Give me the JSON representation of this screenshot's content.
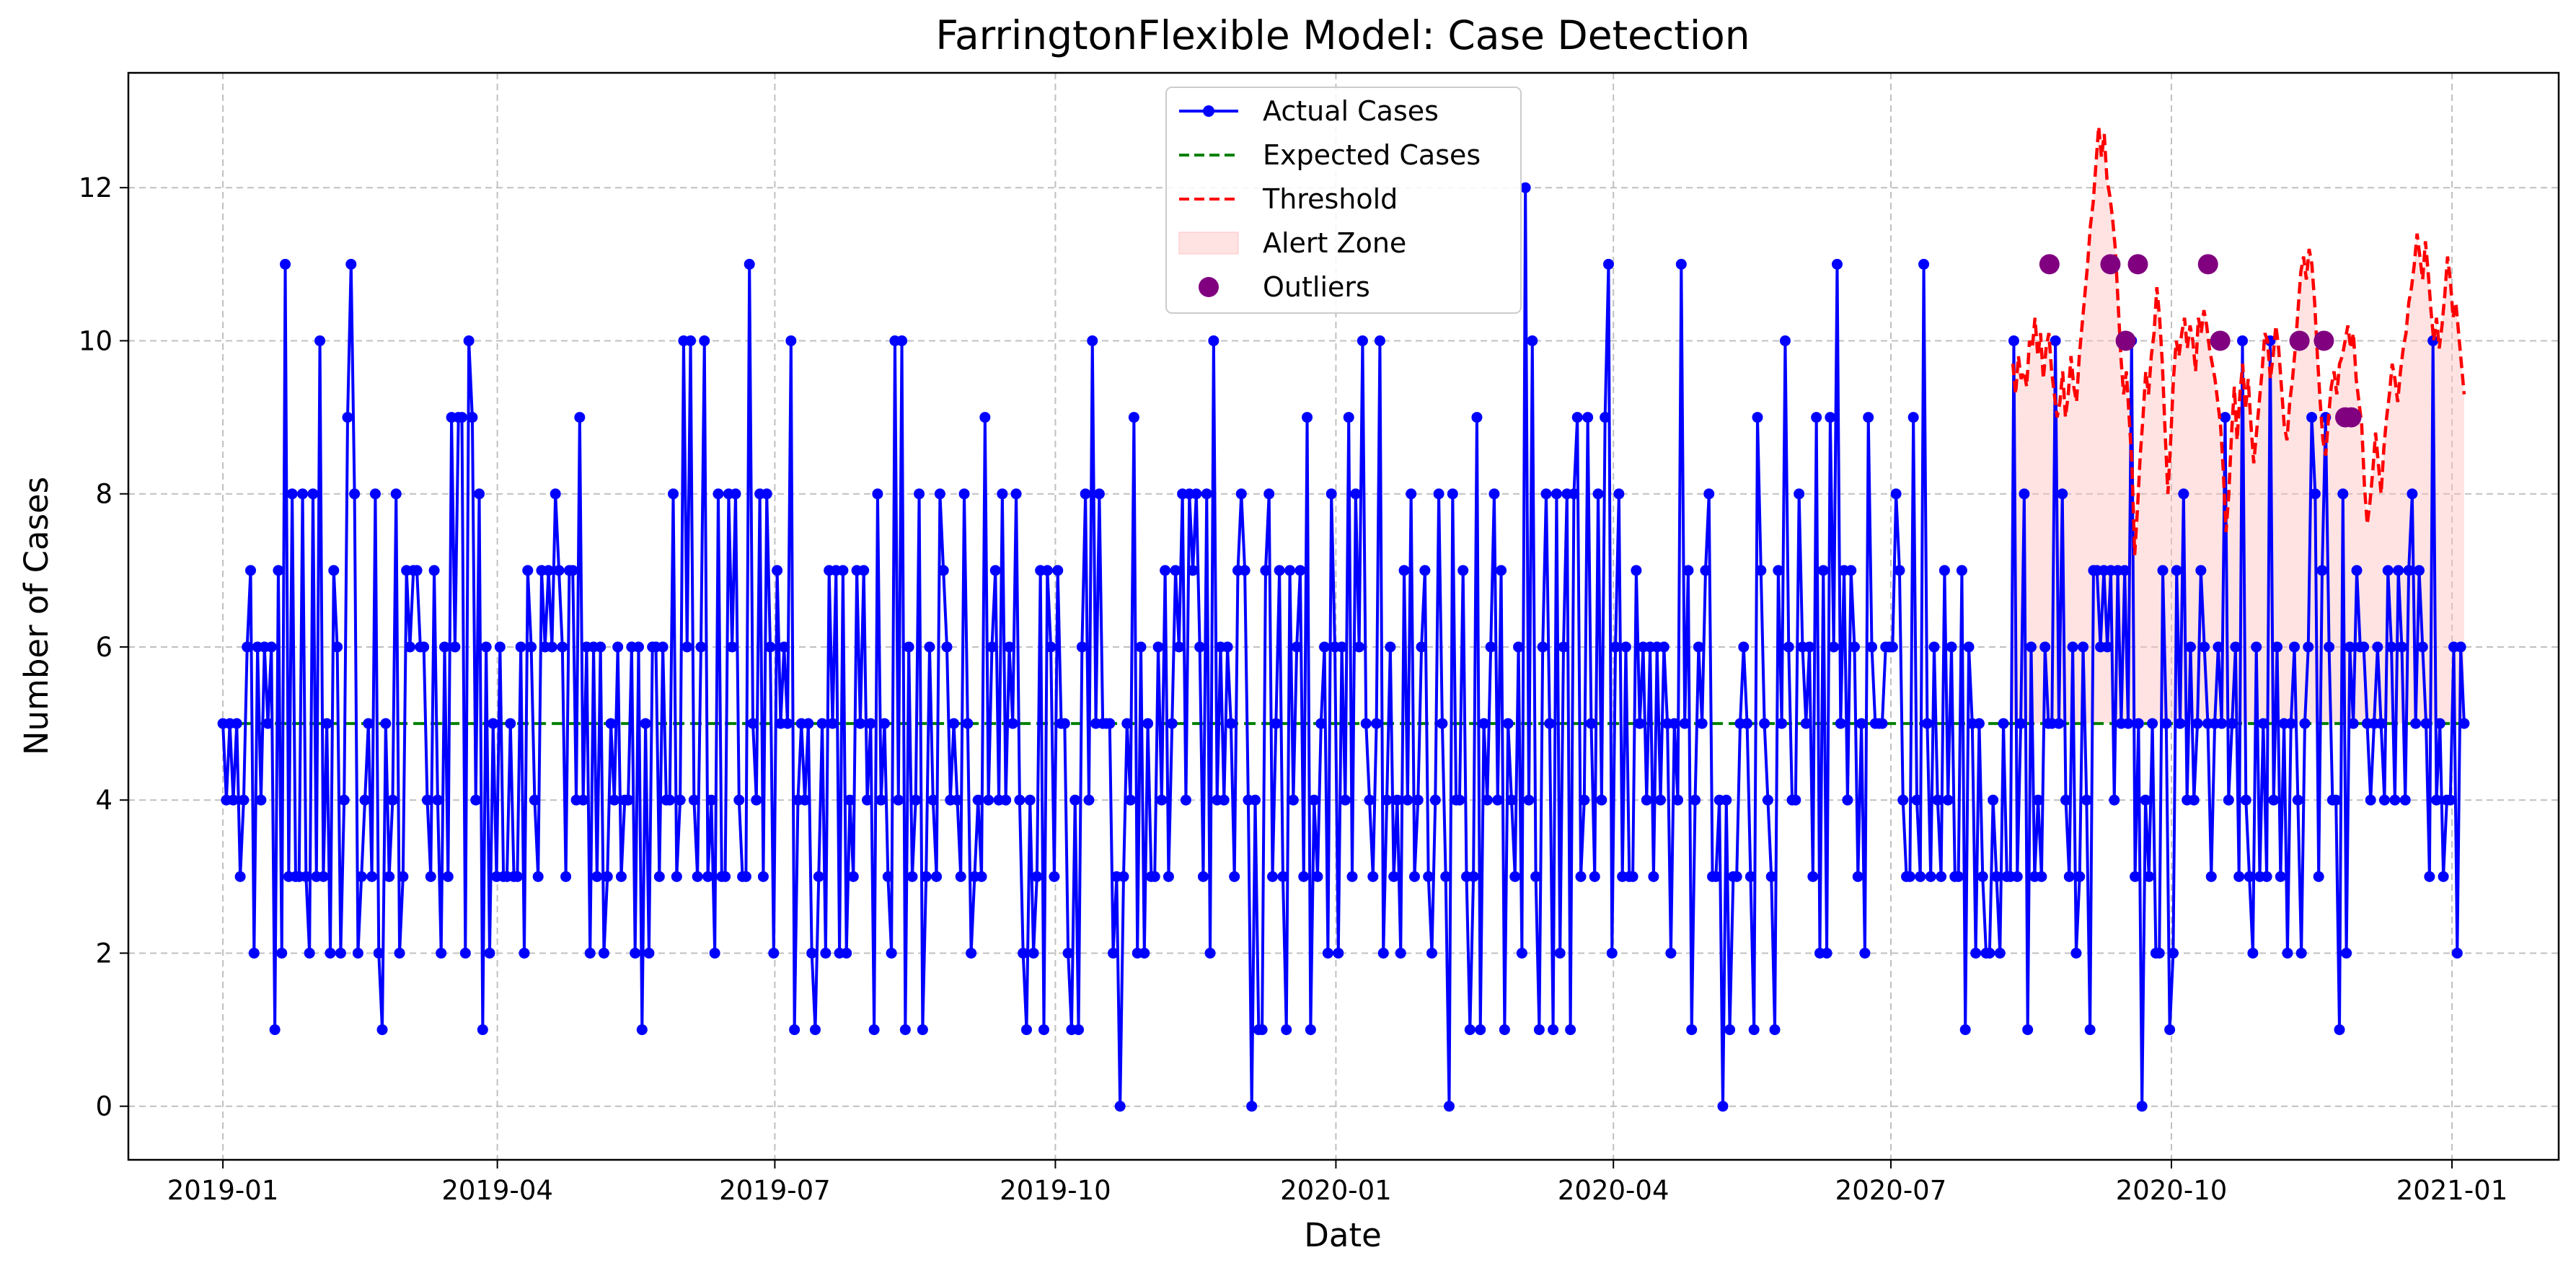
{
  "chart_data": {
    "type": "line",
    "title": "FarringtonFlexible Model: Case Detection",
    "xlabel": "Date",
    "ylabel": "Number of Cases",
    "x_start": "2019-01-01",
    "x_end": "2021-01-05",
    "xlim": [
      "2018-12-01",
      "2021-02-05"
    ],
    "ylim": [
      -0.7,
      13.5
    ],
    "x_ticks": [
      "2019-01",
      "2019-04",
      "2019-07",
      "2019-10",
      "2020-01",
      "2020-04",
      "2020-07",
      "2020-10",
      "2021-01"
    ],
    "y_ticks": [
      0,
      2,
      4,
      6,
      8,
      10,
      12
    ],
    "grid": true,
    "legend": {
      "position": "top-center",
      "entries": [
        "Actual Cases",
        "Expected Cases",
        "Threshold",
        "Alert Zone",
        "Outliers"
      ]
    },
    "series": [
      {
        "name": "Actual Cases",
        "style": "line-marker",
        "color": "#0000ff",
        "values": [
          5,
          4,
          5,
          4,
          5,
          3,
          4,
          6,
          7,
          2,
          6,
          4,
          6,
          5,
          6,
          1,
          7,
          2,
          11,
          3,
          8,
          3,
          3,
          8,
          3,
          2,
          8,
          3,
          10,
          3,
          5,
          2,
          7,
          6,
          2,
          4,
          9,
          11,
          8,
          2,
          3,
          4,
          5,
          3,
          8,
          2,
          1,
          5,
          3,
          4,
          8,
          2,
          3,
          7,
          6,
          7,
          7,
          6,
          6,
          4,
          3,
          7,
          4,
          2,
          6,
          3,
          9,
          6,
          9,
          9,
          2,
          10,
          9,
          4,
          8,
          1,
          6,
          2,
          5,
          3,
          6,
          3,
          3,
          5,
          3,
          3,
          6,
          2,
          7,
          6,
          4,
          3,
          7,
          6,
          7,
          6,
          8,
          7,
          6,
          3,
          7,
          7,
          4,
          9,
          4,
          6,
          2,
          6,
          3,
          6,
          2,
          3,
          5,
          4,
          6,
          3,
          4,
          4,
          6,
          2,
          6,
          1,
          5,
          2,
          6,
          6,
          3,
          6,
          4,
          4,
          8,
          3,
          4,
          10,
          6,
          10,
          4,
          3,
          6,
          10,
          3,
          4,
          2,
          8,
          3,
          3,
          8,
          6,
          8,
          4,
          3,
          3,
          11,
          5,
          4,
          8,
          3,
          8,
          6,
          2,
          7,
          5,
          6,
          5,
          10,
          1,
          4,
          5,
          4,
          5,
          2,
          1,
          3,
          5,
          2,
          7,
          5,
          7,
          2,
          7,
          2,
          4,
          3,
          7,
          5,
          7,
          4,
          5,
          1,
          8,
          4,
          5,
          3,
          2,
          10,
          4,
          10,
          1,
          6,
          3,
          4,
          8,
          1,
          3,
          6,
          4,
          3,
          8,
          7,
          6,
          4,
          5,
          4,
          3,
          8,
          5,
          2,
          3,
          4,
          3,
          9,
          4,
          6,
          7,
          4,
          8,
          4,
          6,
          5,
          8,
          4,
          2,
          1,
          4,
          2,
          3,
          7,
          1,
          7,
          6,
          3,
          7,
          5,
          5,
          2,
          1,
          4,
          1,
          6,
          8,
          4,
          10,
          5,
          8,
          5,
          5,
          5,
          2,
          3,
          0,
          3,
          5,
          4,
          9,
          2,
          6,
          2,
          5,
          3,
          3,
          6,
          4,
          7,
          3,
          5,
          7,
          6,
          8,
          4,
          8,
          7,
          8,
          6,
          3,
          8,
          2,
          10,
          4,
          6,
          4,
          6,
          5,
          3,
          7,
          8,
          7,
          4,
          0,
          4,
          1,
          1,
          7,
          8,
          3,
          5,
          7,
          3,
          1,
          7,
          4,
          6,
          7,
          3,
          9,
          1,
          4,
          3,
          5,
          6,
          2,
          8,
          6,
          2,
          6,
          4,
          9,
          3,
          8,
          6,
          10,
          5,
          4,
          3,
          5,
          10,
          2,
          4,
          6,
          3,
          4,
          2,
          7,
          4,
          8,
          3,
          4,
          6,
          7,
          3,
          2,
          4,
          8,
          5,
          3,
          0,
          8,
          4,
          4,
          7,
          3,
          1,
          3,
          9,
          1,
          5,
          4,
          6,
          8,
          4,
          7,
          1,
          5,
          4,
          3,
          6,
          2,
          12,
          4,
          10,
          3,
          1,
          6,
          8,
          5,
          1,
          8,
          2,
          6,
          8,
          1,
          8,
          9,
          3,
          4,
          9,
          5,
          3,
          8,
          4,
          9,
          11,
          2,
          6,
          8,
          3,
          6,
          3,
          3,
          7,
          5,
          6,
          4,
          6,
          3,
          6,
          4,
          6,
          5,
          2,
          5,
          4,
          11,
          5,
          7,
          1,
          4,
          6,
          5,
          7,
          8,
          3,
          3,
          4,
          0,
          4,
          1,
          3,
          3,
          5,
          6,
          5,
          3,
          1,
          9,
          7,
          5,
          4,
          3,
          1,
          7,
          5,
          10,
          6,
          4,
          4,
          8,
          6,
          5,
          6,
          3,
          9,
          2,
          7,
          2,
          9,
          6,
          11,
          5,
          7,
          4,
          7,
          6,
          3,
          5,
          2,
          9,
          6,
          5,
          5,
          5,
          6,
          6,
          6,
          8,
          7,
          4,
          3,
          3,
          9,
          4,
          3,
          11,
          5,
          3,
          6,
          4,
          3,
          7,
          4,
          6,
          3,
          3,
          7,
          1,
          6,
          5,
          2,
          5,
          3,
          2,
          2,
          4,
          3,
          2,
          5,
          3,
          3,
          10,
          3,
          5,
          8,
          1,
          6,
          3,
          4,
          3,
          6,
          5,
          5,
          10,
          5,
          8,
          4,
          3,
          6,
          2,
          3,
          6,
          4,
          1,
          7,
          7,
          6,
          7,
          6,
          7,
          4,
          7,
          5,
          7,
          5,
          10,
          3,
          5,
          0,
          4,
          3,
          5,
          2,
          2,
          7,
          5,
          1,
          2,
          7,
          5,
          8,
          4,
          6,
          4,
          5,
          7,
          6,
          5,
          3,
          5,
          6,
          5,
          9,
          4,
          5,
          6,
          3,
          10,
          4,
          3,
          2,
          6,
          3,
          5,
          3,
          10,
          4,
          6,
          3,
          5,
          2,
          5,
          6,
          4,
          2,
          5,
          6,
          9,
          8,
          3,
          7,
          9,
          6,
          4,
          4,
          1,
          8,
          2,
          6,
          5,
          7,
          6,
          6,
          5,
          4,
          5,
          6,
          5,
          4,
          7,
          6,
          4,
          7,
          6,
          4,
          7,
          8,
          5,
          7,
          6,
          5,
          3,
          10,
          4,
          5,
          3,
          4,
          4,
          6,
          2,
          6,
          5
        ]
      },
      {
        "name": "Expected Cases",
        "style": "dashed",
        "color": "#008000",
        "value": 5
      },
      {
        "name": "Threshold",
        "style": "dashed",
        "color": "#ff0000",
        "x_start": "2020-08-10",
        "x_end": "2021-01-05",
        "values": [
          9.7,
          9.3,
          9.8,
          9.5,
          9.6,
          9.4,
          10.0,
          9.9,
          10.3,
          9.8,
          10.1,
          9.5,
          9.9,
          10.1,
          9.6,
          9.3,
          9.0,
          9.2,
          9.6,
          9.0,
          9.3,
          9.8,
          9.4,
          9.2,
          9.8,
          10.2,
          10.6,
          11.0,
          11.5,
          11.8,
          12.3,
          12.8,
          12.4,
          12.7,
          12.1,
          11.9,
          11.6,
          11.2,
          10.5,
          9.8,
          9.3,
          9.6,
          9.0,
          8.4,
          7.2,
          7.8,
          8.5,
          9.0,
          9.6,
          9.3,
          9.8,
          10.1,
          10.7,
          10.3,
          9.7,
          8.8,
          8.0,
          8.7,
          9.5,
          10.0,
          9.8,
          10.1,
          10.3,
          9.9,
          10.2,
          10.0,
          9.6,
          10.3,
          10.1,
          10.4,
          10.2,
          9.9,
          9.7,
          9.5,
          9.2,
          8.9,
          8.3,
          7.5,
          8.0,
          8.8,
          9.4,
          8.7,
          9.3,
          9.7,
          9.1,
          9.5,
          8.9,
          8.4,
          8.8,
          9.2,
          9.6,
          10.1,
          10.0,
          9.5,
          9.8,
          10.2,
          9.9,
          9.4,
          8.9,
          8.7,
          9.2,
          9.5,
          9.9,
          10.4,
          10.9,
          11.1,
          10.8,
          11.2,
          11.0,
          10.5,
          9.8,
          9.2,
          8.7,
          8.5,
          9.0,
          9.4,
          9.6,
          9.3,
          9.7,
          9.8,
          10.0,
          10.2,
          9.9,
          10.1,
          9.5,
          9.2,
          8.9,
          8.1,
          7.6,
          7.9,
          8.3,
          8.8,
          8.4,
          8.0,
          8.6,
          9.0,
          9.3,
          9.7,
          9.5,
          9.2,
          9.6,
          9.9,
          10.1,
          10.5,
          10.7,
          11.0,
          11.4,
          11.1,
          10.8,
          11.3,
          10.9,
          10.4,
          10.0,
          10.3,
          9.9,
          10.2,
          10.6,
          11.1,
          10.8,
          10.3,
          10.5,
          10.1,
          9.7,
          9.3
        ]
      },
      {
        "name": "Alert Zone",
        "style": "fill",
        "color": "#ffc0c0"
      },
      {
        "name": "Outliers",
        "style": "scatter",
        "color": "#800080",
        "points": [
          {
            "x": "2020-08-22",
            "y": 11
          },
          {
            "x": "2020-09-11",
            "y": 11
          },
          {
            "x": "2020-09-16",
            "y": 10
          },
          {
            "x": "2020-09-20",
            "y": 11
          },
          {
            "x": "2020-10-13",
            "y": 11
          },
          {
            "x": "2020-10-17",
            "y": 10
          },
          {
            "x": "2020-11-12",
            "y": 10
          },
          {
            "x": "2020-11-20",
            "y": 10
          },
          {
            "x": "2020-11-27",
            "y": 9
          },
          {
            "x": "2020-11-29",
            "y": 9
          }
        ]
      }
    ]
  }
}
